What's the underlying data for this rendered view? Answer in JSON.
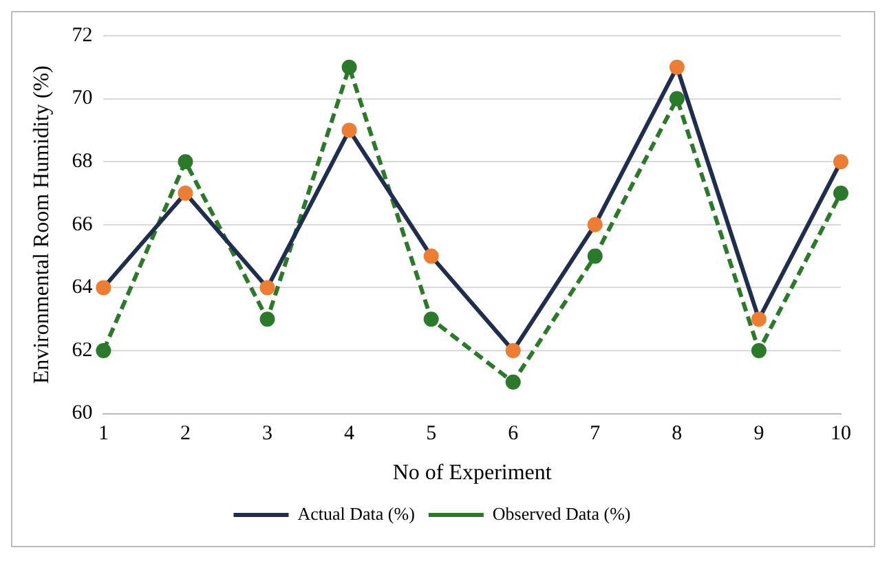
{
  "chart_data": {
    "type": "line",
    "xlabel": "No of Experiment",
    "ylabel": "Environmental Room Humidity (%)",
    "categories": [
      "1",
      "2",
      "3",
      "4",
      "5",
      "6",
      "7",
      "8",
      "9",
      "10"
    ],
    "series": [
      {
        "name": "Actual Data (%)",
        "color": "#1f2e4d",
        "colors": [
          "#ed7d31",
          "#ed7d31",
          "#ed7d31",
          "#ed7d31",
          "#ed7d31",
          "#ed7d31",
          "#ed7d31",
          "#ed7d31",
          "#ed7d31",
          "#ed7d31"
        ],
        "values": [
          64,
          67,
          64,
          69,
          65,
          62,
          66,
          71,
          63,
          68
        ],
        "line_style": "solid"
      },
      {
        "name": "Observed Data (%)",
        "color": "#2a7a2a",
        "values": [
          62,
          68,
          63,
          71,
          63,
          61,
          65,
          70,
          62,
          67
        ],
        "line_style": "dashed"
      }
    ],
    "ylim": [
      60,
      72
    ],
    "yticks": [
      60,
      62,
      64,
      66,
      68,
      70,
      72
    ],
    "grid": "y",
    "legend": "bottom",
    "marker": "circle"
  }
}
